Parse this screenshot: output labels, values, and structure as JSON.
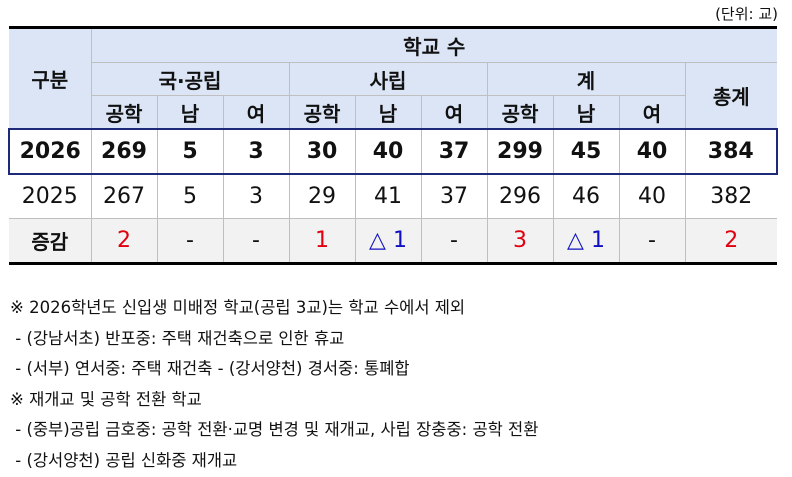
{
  "unit": "(단위: 교)",
  "header": {
    "category": "구분",
    "school_count": "학교 수",
    "groups": [
      "국·공립",
      "사립",
      "계"
    ],
    "total": "총계",
    "sub": [
      "공학",
      "남",
      "여",
      "공학",
      "남",
      "여",
      "공학",
      "남",
      "여"
    ]
  },
  "rows": [
    {
      "label": "2026",
      "values": [
        "269",
        "5",
        "3",
        "30",
        "40",
        "37",
        "299",
        "45",
        "40",
        "384"
      ]
    },
    {
      "label": "2025",
      "values": [
        "267",
        "5",
        "3",
        "29",
        "41",
        "37",
        "296",
        "46",
        "40",
        "382"
      ]
    },
    {
      "label": "증감",
      "values": [
        "2",
        "-",
        "-",
        "1",
        "△ 1",
        "-",
        "3",
        "△ 1",
        "-",
        "2"
      ]
    }
  ],
  "colors": {
    "increase": "#e0000f",
    "decrease": "#1010c0",
    "header_bg": "#dbe5f6",
    "highlight_border": "#1e2a78"
  },
  "notes": [
    "※ 2026학년도 신입생 미배정 학교(공립 3교)는 학교 수에서 제외",
    " - (강남서초) 반포중: 주택 재건축으로 인한 휴교",
    " - (서부) 연서중: 주택 재건축 - (강서양천) 경서중: 통폐합",
    "※ 재개교 및 공학 전환 학교",
    " - (중부)공립 금호중: 공학 전환·교명 변경 및 재개교, 사립 장충중: 공학 전환",
    " - (강서양천) 공립 신화중 재개교"
  ]
}
